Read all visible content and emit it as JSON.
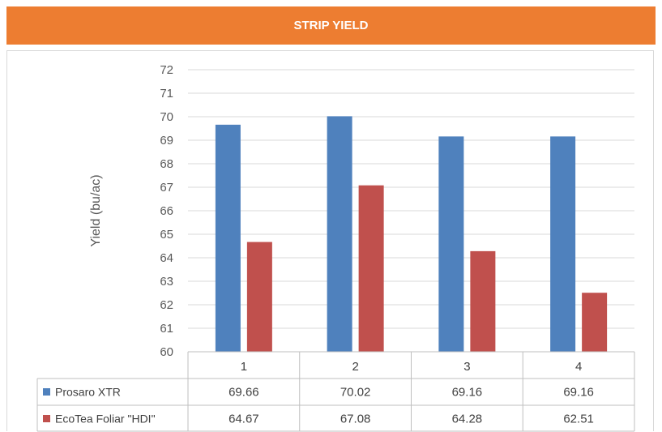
{
  "header": {
    "title": "STRIP YIELD",
    "color": "#ED7D31"
  },
  "chart_data": {
    "type": "bar",
    "title": "",
    "xlabel": "",
    "ylabel": "Yield (bu/ac)",
    "ylim": [
      60,
      72
    ],
    "yticks": [
      60,
      61,
      62,
      63,
      64,
      65,
      66,
      67,
      68,
      69,
      70,
      71,
      72
    ],
    "grid": true,
    "legend": "data-table",
    "categories": [
      "1",
      "2",
      "3",
      "4"
    ],
    "series": [
      {
        "name": "Prosaro XTR",
        "color": "#4F81BD",
        "values": [
          69.66,
          70.02,
          69.16,
          69.16
        ],
        "labels": [
          "69.66",
          "70.02",
          "69.16",
          "69.16"
        ]
      },
      {
        "name": "EcoTea Foliar \"HDI\"",
        "color": "#C0504D",
        "values": [
          64.67,
          67.08,
          64.28,
          62.51
        ],
        "labels": [
          "64.67",
          "67.08",
          "64.28",
          "62.51"
        ]
      }
    ]
  }
}
